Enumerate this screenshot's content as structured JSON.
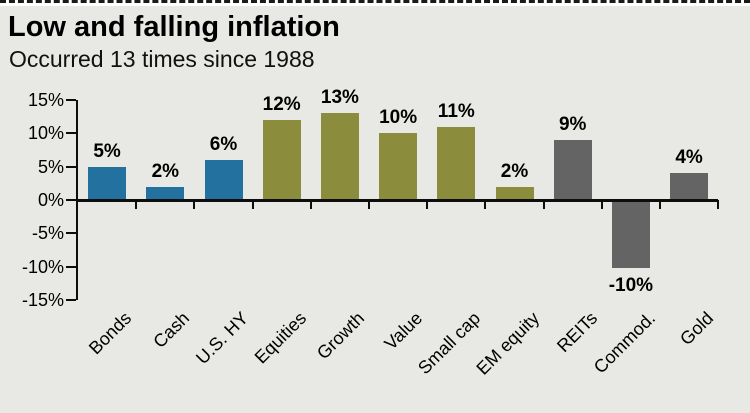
{
  "page": {
    "title": "Low and falling inflation",
    "subtitle": "Occurred 13 times since 1988"
  },
  "colors": {
    "background": "#E8E8E4",
    "fixed_income_blue": "#23719E",
    "equity_olive": "#8B8D3D",
    "alternatives_gray": "#646465",
    "axis_black": "#0D0D0D"
  },
  "chart_data": {
    "type": "bar",
    "title": "Low and falling inflation",
    "subtitle": "Occurred 13 times since 1988",
    "categories": [
      "Bonds",
      "Cash",
      "U.S. HY",
      "Equities",
      "Growth",
      "Value",
      "Small cap",
      "EM equity",
      "REITs",
      "Commod.",
      "Gold"
    ],
    "values": [
      5,
      2,
      6,
      12,
      13,
      10,
      11,
      2,
      9,
      -10,
      4
    ],
    "value_labels": [
      "5%",
      "2%",
      "6%",
      "12%",
      "13%",
      "10%",
      "11%",
      "2%",
      "9%",
      "-10%",
      "4%"
    ],
    "bar_colors": [
      "#23719E",
      "#23719E",
      "#23719E",
      "#8B8D3D",
      "#8B8D3D",
      "#8B8D3D",
      "#8B8D3D",
      "#8B8D3D",
      "#646465",
      "#646465",
      "#646465"
    ],
    "xlabel": "",
    "ylabel": "",
    "ylim": [
      -15,
      15
    ],
    "y_tick_values": [
      15,
      10,
      5,
      0,
      -5,
      -10,
      -15
    ],
    "y_tick_labels": [
      "15%",
      "10%",
      "5%",
      "0%",
      "-5%",
      "-10%",
      "-15%"
    ],
    "grid": false,
    "legend_position": "none",
    "bar_label_rotation_deg": -45
  }
}
